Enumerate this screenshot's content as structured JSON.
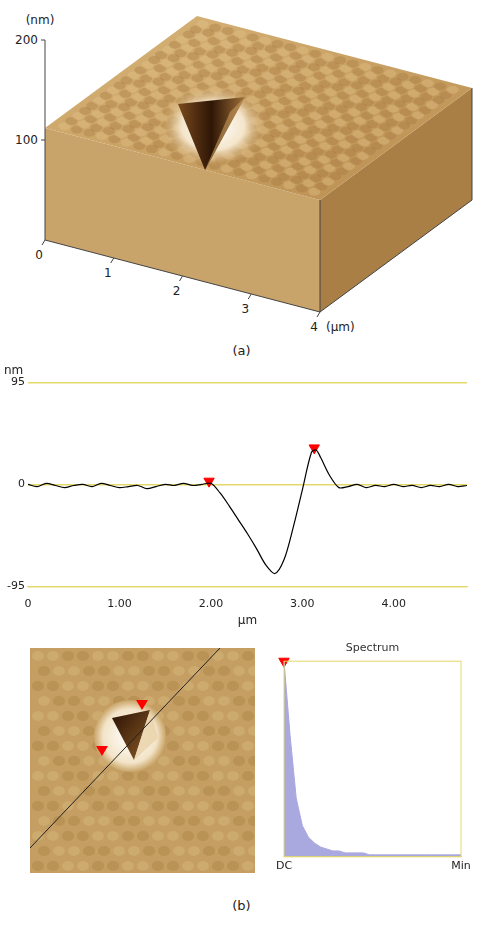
{
  "panel_a": {
    "z_axis_label": "(nm)",
    "zlim": [
      0,
      200
    ],
    "z_ticks": [
      100,
      200
    ],
    "xlim": [
      0,
      4
    ],
    "x_ticks": [
      0,
      1,
      2,
      3,
      4
    ],
    "x_axis_label": "(µm)",
    "caption": "(a)"
  },
  "chart_data": [
    {
      "type": "line",
      "y_label": "nm",
      "x_label": "µm",
      "x": [
        0,
        0.1,
        0.2,
        0.3,
        0.4,
        0.5,
        0.6,
        0.7,
        0.8,
        0.9,
        1.0,
        1.1,
        1.2,
        1.3,
        1.4,
        1.5,
        1.6,
        1.7,
        1.8,
        1.9,
        2.0,
        2.1,
        2.2,
        2.3,
        2.4,
        2.5,
        2.6,
        2.7,
        2.8,
        2.9,
        3.0,
        3.1,
        3.15,
        3.2,
        3.3,
        3.4,
        3.5,
        3.6,
        3.7,
        3.8,
        3.9,
        4.0,
        4.1,
        4.2,
        4.3,
        4.4,
        4.5,
        4.6,
        4.7,
        4.8
      ],
      "values": [
        0,
        -2,
        1,
        -1,
        -3,
        -1,
        0,
        -2,
        1,
        -1,
        -3,
        -2,
        -1,
        -4,
        -2,
        0,
        -1,
        1,
        -1,
        0,
        1,
        -8,
        -20,
        -33,
        -46,
        -60,
        -75,
        -83,
        -70,
        -40,
        -5,
        30,
        32,
        25,
        8,
        -3,
        -2,
        0,
        -3,
        -1,
        -2,
        0,
        -2,
        -1,
        -3,
        -1,
        -2,
        0,
        -2,
        -1
      ],
      "color": "#000000",
      "xlim": [
        0,
        4.8
      ],
      "xticks": [
        0,
        {
          "value": 1,
          "label": "1.00"
        },
        {
          "value": 2,
          "label": "2.00"
        },
        {
          "value": 3,
          "label": "3.00"
        },
        {
          "value": 4,
          "label": "4.00"
        }
      ],
      "ylim": [
        -95,
        95
      ],
      "yticks": [
        -95,
        0,
        95
      ],
      "grid": true,
      "markers": {
        "color": "#ff0000",
        "marker": "triangle",
        "points": [
          {
            "x": 1.98,
            "y": 3
          },
          {
            "x": 3.13,
            "y": 34
          }
        ]
      }
    },
    {
      "type": "area",
      "title": "Spectrum",
      "categories": [
        "DC",
        null,
        null,
        null,
        null,
        null,
        null,
        null,
        null,
        null,
        null,
        null,
        null,
        null,
        null,
        null,
        null,
        null,
        null,
        null,
        null,
        null,
        null,
        null,
        null,
        null,
        null,
        null,
        null,
        "Min"
      ],
      "values": [
        100,
        62,
        30,
        16,
        10,
        7,
        5,
        4,
        3,
        3,
        2,
        2,
        2,
        2,
        1,
        1,
        1,
        1,
        1,
        1,
        1,
        1,
        1,
        1,
        1,
        1,
        1,
        1,
        1,
        1
      ],
      "color": "#a9a9e0",
      "ylim": [
        0,
        100
      ],
      "tick_labels": "x",
      "grid": false,
      "markers": {
        "color": "#ff0000",
        "marker": "triangle",
        "points": [
          {
            "index": 0,
            "y": 100
          }
        ]
      }
    }
  ],
  "panel_b_caption": "(b)"
}
